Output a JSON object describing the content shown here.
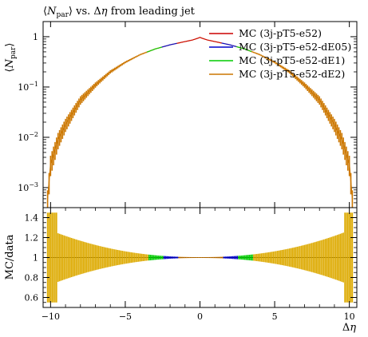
{
  "chart_data": [
    {
      "type": "line",
      "panel": "main",
      "title": "⟨N_par⟩ vs. Δη from leading jet",
      "title_parts": {
        "pre": "⟨",
        "var": "N",
        "sub": "par",
        "post": "⟩ vs. Δ",
        "eta": "η",
        "tail": " from leading jet"
      },
      "ylabel": "⟨N_par⟩",
      "ylabel_parts": {
        "var": "N",
        "sub": "par"
      },
      "xlabel": "",
      "xlim": [
        -10.5,
        10.5
      ],
      "ylim": [
        0.0004,
        2
      ],
      "yscale": "log",
      "yticks": [
        {
          "value": 1,
          "label": "1"
        },
        {
          "value": 0.1,
          "label": "10",
          "exp": "−1"
        },
        {
          "value": 0.01,
          "label": "10",
          "exp": "−2"
        },
        {
          "value": 0.001,
          "label": "10",
          "exp": "−3"
        }
      ],
      "legend_placement": "top-right",
      "legend": [
        {
          "name": "MC (3j-pT5-e52)",
          "color": "#cc0000"
        },
        {
          "name": "MC (3j-pT5-e52-dE05)",
          "color": "#0000cc"
        },
        {
          "name": "MC (3j-pT5-e52-dE1)",
          "color": "#00cc00"
        },
        {
          "name": "MC (3j-pT5-e52-dE2)",
          "color": "#cc7700"
        }
      ],
      "x": [
        -10.2,
        -10.0,
        -9.5,
        -9.0,
        -8.0,
        -7.0,
        -6.0,
        -5.0,
        -4.0,
        -3.0,
        -2.0,
        -1.0,
        -0.5,
        -0.2,
        0.0,
        0.2,
        0.5,
        1.0,
        2.0,
        3.0,
        4.0,
        5.0,
        6.0,
        7.0,
        8.0,
        9.0,
        9.5,
        10.0,
        10.2
      ],
      "series": [
        {
          "name": "MC (3j-pT5-e52)",
          "values": [
            0.0006,
            0.003,
            0.009,
            0.018,
            0.055,
            0.11,
            0.2,
            0.31,
            0.44,
            0.57,
            0.69,
            0.8,
            0.86,
            0.92,
            0.97,
            0.92,
            0.86,
            0.8,
            0.69,
            0.57,
            0.44,
            0.31,
            0.2,
            0.11,
            0.055,
            0.018,
            0.009,
            0.003,
            0.0006
          ]
        }
      ]
    },
    {
      "type": "line",
      "panel": "ratio",
      "ylabel": "MC/data",
      "xlabel": "Δη",
      "xlabel_parts": {
        "pre": "Δ",
        "eta": "η"
      },
      "xlim": [
        -10.5,
        10.5
      ],
      "ylim": [
        0.5,
        1.5
      ],
      "yticks": [
        {
          "value": 0.6,
          "label": "0.6"
        },
        {
          "value": 0.8,
          "label": "0.8"
        },
        {
          "value": 1,
          "label": "1"
        },
        {
          "value": 1.2,
          "label": "1.2"
        },
        {
          "value": 1.4,
          "label": "1.4"
        }
      ],
      "xticks": [
        {
          "value": -10,
          "label": "−10"
        },
        {
          "value": -5,
          "label": "−5"
        },
        {
          "value": 0,
          "label": "0"
        },
        {
          "value": 5,
          "label": "5"
        },
        {
          "value": 10,
          "label": "10"
        }
      ],
      "reference_line": 1
    }
  ]
}
